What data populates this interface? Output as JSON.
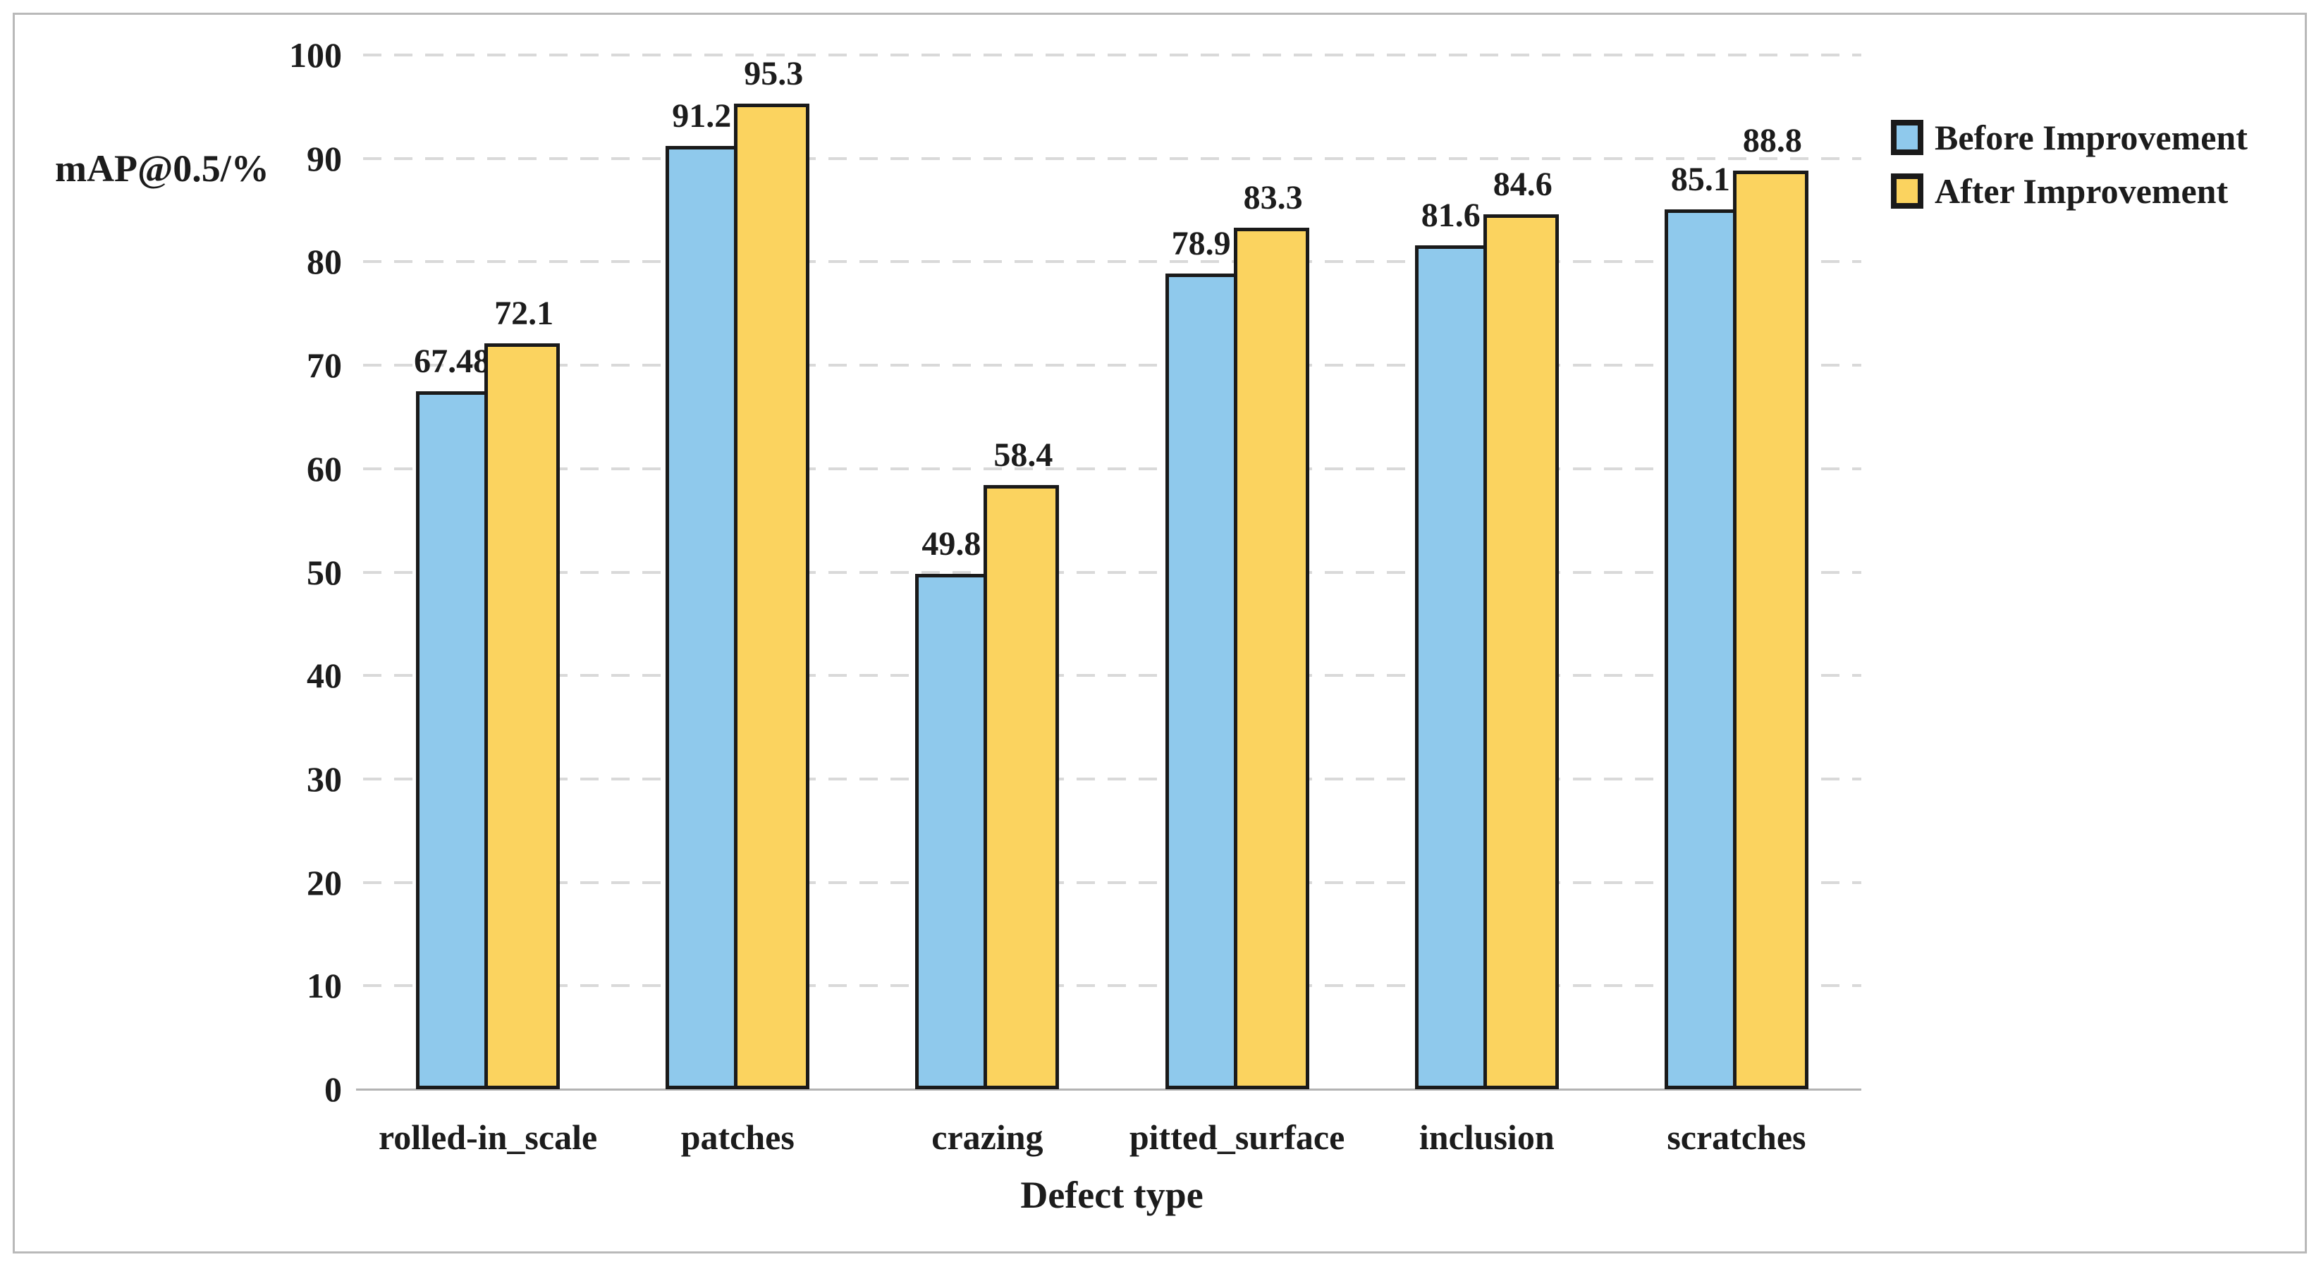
{
  "chart_data": {
    "type": "bar",
    "title": "",
    "categories": [
      "rolled-in_scale",
      "patches",
      "crazing",
      "pitted_surface",
      "inclusion",
      "scratches"
    ],
    "series": [
      {
        "name": "Before Improvement",
        "color": "#8FC9EC",
        "values": [
          67.48,
          91.2,
          49.8,
          78.9,
          81.6,
          85.1
        ]
      },
      {
        "name": "After Improvement",
        "color": "#FBD35F",
        "values": [
          72.1,
          95.3,
          58.4,
          83.3,
          84.6,
          88.8
        ]
      }
    ],
    "data_labels": [
      "67.48",
      "91.2",
      "49.8",
      "78.9",
      "81.6",
      "85.1",
      "72.1",
      "95.3",
      "58.4",
      "83.3",
      "84.6",
      "88.8"
    ],
    "xlabel": "Defect type",
    "ylabel": "mAP@0.5/%",
    "ylim": [
      0,
      100
    ],
    "yticks": [
      0,
      10,
      20,
      30,
      40,
      50,
      60,
      70,
      80,
      90,
      100
    ],
    "grid": "horizontal-dashed",
    "gridline_color": "#d9d9d9",
    "axis_line_color": "#b3b3b3",
    "bar_border_color": "#1a1a1a",
    "text_color": "#1c1c1c",
    "frame_border_color": "#b9b9b9",
    "legend_position": "top-right"
  }
}
